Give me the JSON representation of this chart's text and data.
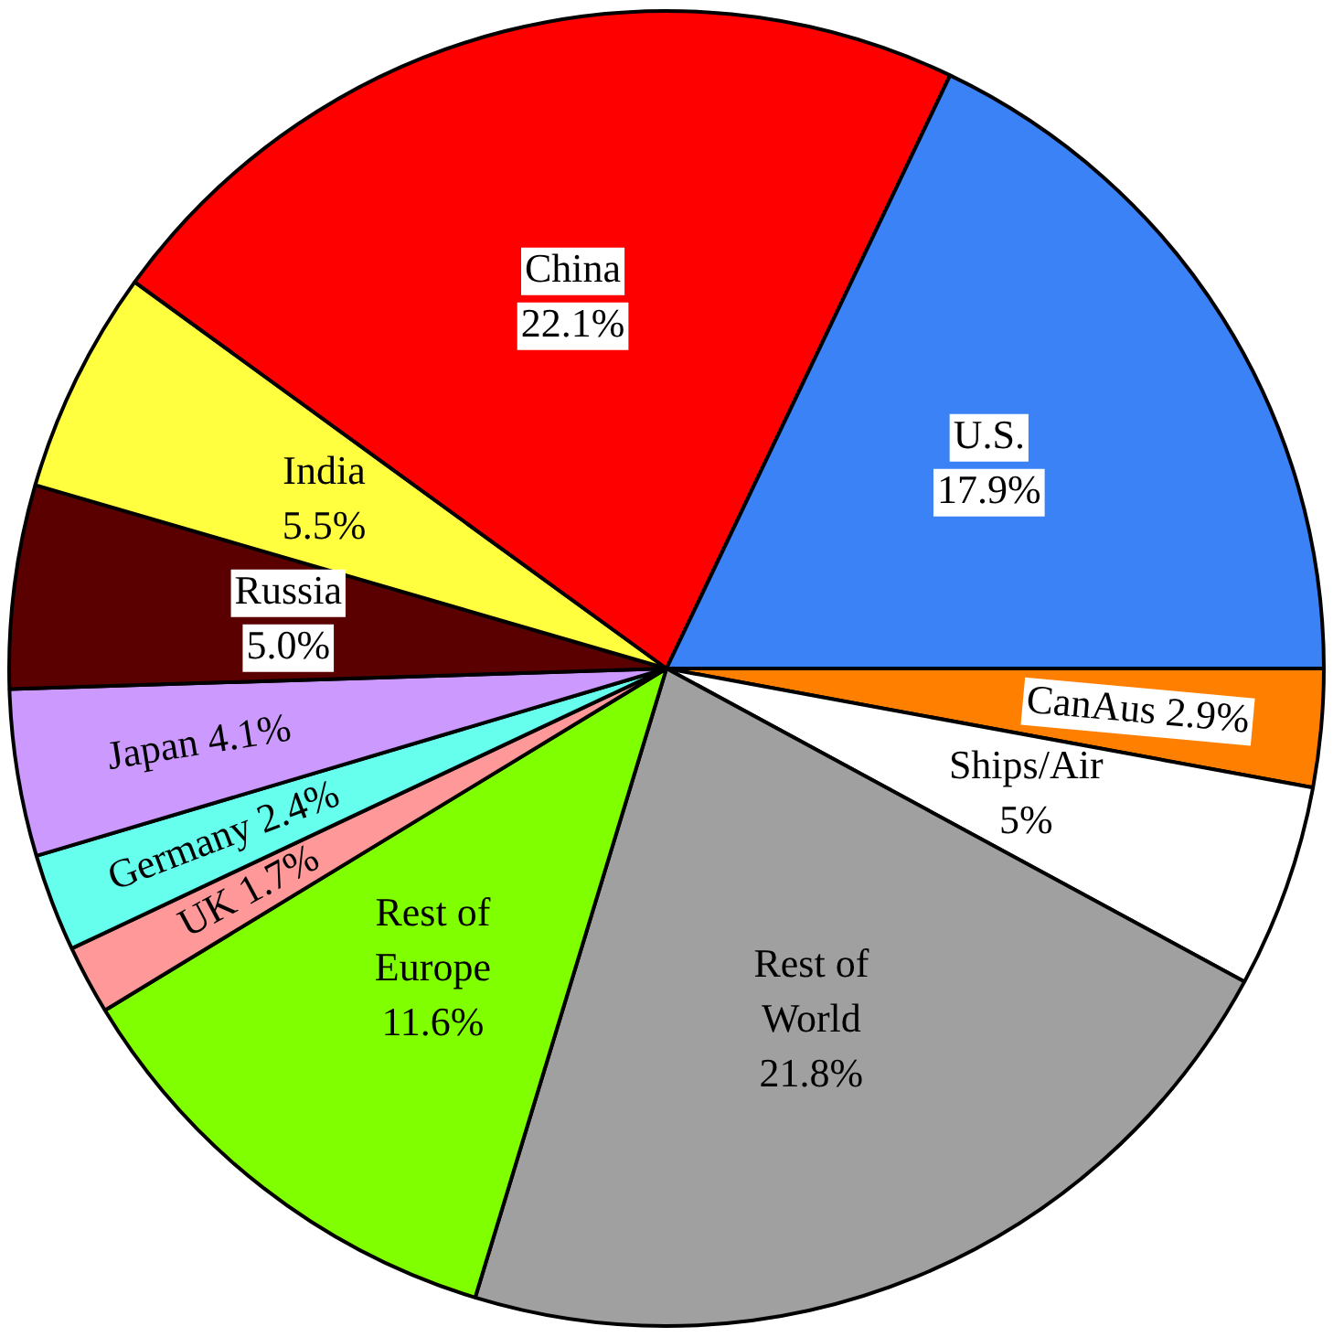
{
  "chart_data": {
    "type": "pie",
    "categories": [
      "CanAus",
      "Ships/Air",
      "Rest of World",
      "Rest of Europe",
      "UK",
      "Germany",
      "Japan",
      "Russia",
      "India",
      "China",
      "U.S."
    ],
    "values": [
      2.9,
      5,
      21.8,
      11.6,
      1.7,
      2.4,
      4.1,
      5.0,
      5.5,
      22.1,
      17.9
    ],
    "value_labels": [
      "2.9%",
      "5%",
      "21.8%",
      "11.6%",
      "1.7%",
      "2.4%",
      "4.1%",
      "5.0%",
      "5.5%",
      "22.1%",
      "17.9%"
    ],
    "colors": [
      "#ff8000",
      "#ffffff",
      "#a0a0a0",
      "#80ff00",
      "#ff9999",
      "#66ffee",
      "#cc99ff",
      "#5a0000",
      "#ffff40",
      "#ff0000",
      "#3b82f6"
    ],
    "legend": false
  }
}
